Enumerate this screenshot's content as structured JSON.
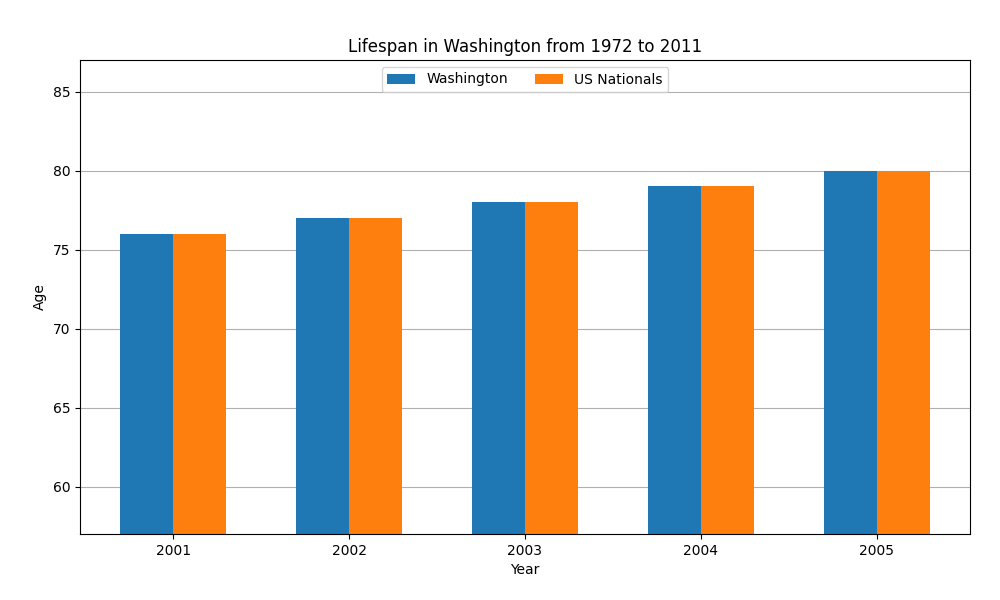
{
  "chart_data": {
    "type": "bar",
    "title": "Lifespan in Washington from 1972 to 2011",
    "x_label": "Year",
    "y_label": "Age",
    "categories": [
      "2001",
      "2002",
      "2003",
      "2004",
      "2005"
    ],
    "series": [
      {
        "name": "Washington",
        "values": [
          76,
          77,
          78,
          79,
          80
        ]
      },
      {
        "name": "US Nationals",
        "values": [
          76,
          77,
          78,
          79,
          80
        ]
      }
    ],
    "ylim": [
      57,
      87
    ],
    "yticks": [
      60,
      65,
      70,
      75,
      80,
      85
    ],
    "grid": true,
    "legend": "upper center"
  }
}
